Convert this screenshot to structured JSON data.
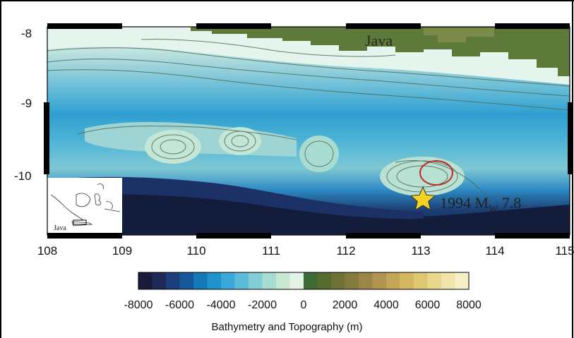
{
  "map": {
    "place_label": "Java",
    "event_year": "1994",
    "event_mag_prefix": "M",
    "event_mag_sub": "W",
    "event_mag_value": "7.8",
    "inset_label": "Java",
    "y_ticks": [
      "-8",
      "-9",
      "-10"
    ],
    "x_ticks": [
      "108",
      "109",
      "110",
      "111",
      "112",
      "113",
      "114",
      "115"
    ],
    "extent": {
      "lon": [
        108,
        115
      ],
      "lat": [
        -10.8,
        -7.9
      ]
    },
    "epicenter": {
      "lon": 113.05,
      "lat": -10.3
    },
    "rupture_ellipse_center": {
      "lon": 113.3,
      "lat": -9.95
    }
  },
  "colorbar": {
    "tick_labels": [
      "-8000",
      "-6000",
      "-4000",
      "-2000",
      "0",
      "2000",
      "4000",
      "6000",
      "8000"
    ],
    "range": [
      -8000,
      8000
    ],
    "title": "Bathymetry and Topography (m)",
    "colors": [
      "#1a1a3a",
      "#1e2a55",
      "#1d3e78",
      "#17589a",
      "#1579b8",
      "#1f92cc",
      "#3aa8d8",
      "#5cbcd8",
      "#82cdd6",
      "#a8dcd2",
      "#c8e8d0",
      "#e2f2e4",
      "#3e6a35",
      "#556b30",
      "#6e7035",
      "#857a3e",
      "#9b8648",
      "#b0944f",
      "#c4a556",
      "#d5b860",
      "#e0c873",
      "#e9d78d",
      "#f1e4ab",
      "#f6efc8"
    ]
  },
  "colors": {
    "frame_black": "#000000",
    "land_green": "#5d7a3a",
    "star_yellow": "#f5d21f",
    "ellipse_red": "#c0282a"
  }
}
